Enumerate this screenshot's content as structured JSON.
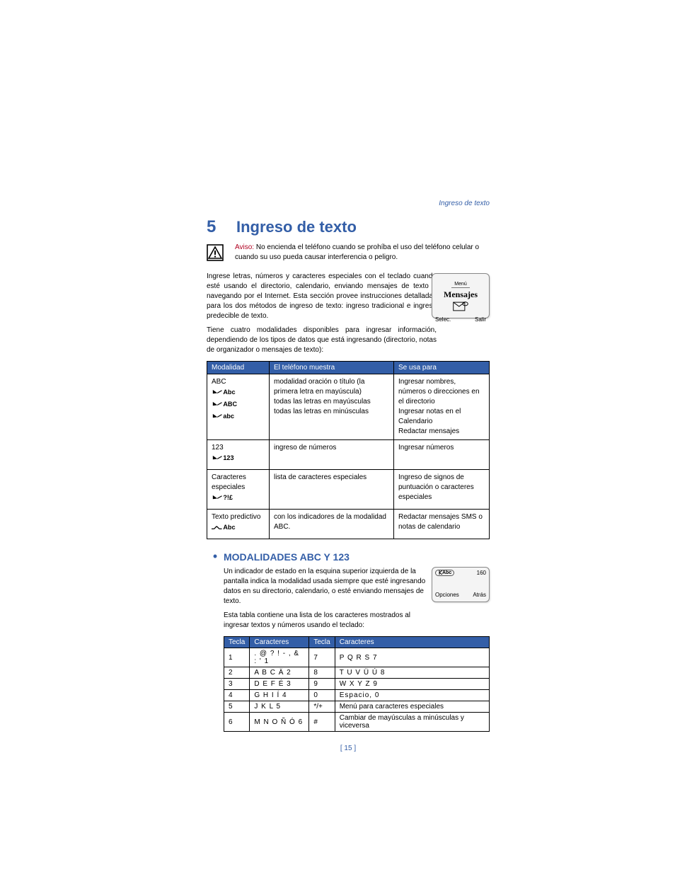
{
  "breadcrumb": "Ingreso de texto",
  "chapter": {
    "num": "5",
    "title": "Ingreso de texto"
  },
  "aviso": {
    "label": "Aviso:",
    "text": " No encienda el teléfono cuando se prohíba el uso del teléfono celular o cuando su uso pueda causar interferencia o peligro."
  },
  "intro1": "Ingrese letras, números y caracteres especiales con el teclado cuando esté usando el directorio, calendario, enviando mensajes de texto o navegando por el Internet. Esta sección provee instrucciones detalladas para los dos métodos de ingreso de texto: ingreso tradicional e ingreso predecible de texto.",
  "intro2": "Tiene cuatro modalidades disponibles para ingresar información, dependiendo de los tipos de datos que está ingresando (directorio, notas de organizador o mensajes de texto):",
  "phone1": {
    "menu": "Menú",
    "title": "Mensajes",
    "left": "Selec.",
    "right": "Salir"
  },
  "table1": {
    "headers": [
      "Modalidad",
      "El teléfono muestra",
      "Se usa para"
    ],
    "rows": [
      {
        "mode_label": "ABC",
        "icons": [
          "Abc",
          "ABC",
          "abc"
        ],
        "shows": [
          "modalidad oración o título (la primera letra en mayúscula)",
          "todas las letras en mayúsculas",
          "todas las letras en minúsculas"
        ],
        "used": [
          "Ingresar nombres, números o direcciones en el directorio",
          "Ingresar notas en el Calendario",
          "Redactar mensajes"
        ]
      },
      {
        "mode_label": "123",
        "icons": [
          "123"
        ],
        "shows": [
          "ingreso de números"
        ],
        "used": [
          "Ingresar números"
        ]
      },
      {
        "mode_label": "Caracteres especiales",
        "icons": [
          "?!£"
        ],
        "shows": [
          "lista de caracteres especiales"
        ],
        "used": [
          "Ingreso de signos de puntuación o caracteres especiales"
        ]
      },
      {
        "mode_label": "Texto predictivo",
        "icons": [
          "Abc"
        ],
        "shows": [
          "con los indicadores de la modalidad ABC."
        ],
        "used": [
          "Redactar mensajes SMS o notas de calendario"
        ]
      }
    ]
  },
  "section": {
    "title": "MODALIDADES ABC Y 123",
    "para1": "Un indicador de estado en la esquina superior izquierda de la pantalla indica la modalidad usada siempre que esté ingresando datos en su directorio, calendario, o esté enviando mensajes de texto.",
    "para2": "Esta tabla contiene una lista de los caracteres mostrados al ingresar textos y números usando el teclado:"
  },
  "phone2": {
    "mode": "Abc",
    "count": "160",
    "left": "Opciones",
    "right": "Atrás"
  },
  "table2": {
    "headers": [
      "Tecla",
      "Caracteres",
      "Tecla",
      "Caracteres"
    ],
    "rows": [
      [
        "1",
        ". @ ? ! - , & : ' 1",
        "7",
        "P Q R S 7"
      ],
      [
        "2",
        "A B C Ä 2",
        "8",
        "T U V Ü Ú 8"
      ],
      [
        "3",
        "D E F É 3",
        "9",
        "W X Y Z 9"
      ],
      [
        "4",
        "G H I Í 4",
        "0",
        "Espacio, 0"
      ],
      [
        "5",
        "J K L 5",
        "*/+",
        "Menú para caracteres especiales"
      ],
      [
        "6",
        "M N O Ñ Ó 6",
        "#",
        "Cambiar de mayúsculas a minúsculas y viceversa"
      ]
    ]
  },
  "pagenum": "[ 15 ]",
  "colors": {
    "accent": "#335ea7",
    "danger": "#b00020",
    "bg": "#ffffff"
  }
}
